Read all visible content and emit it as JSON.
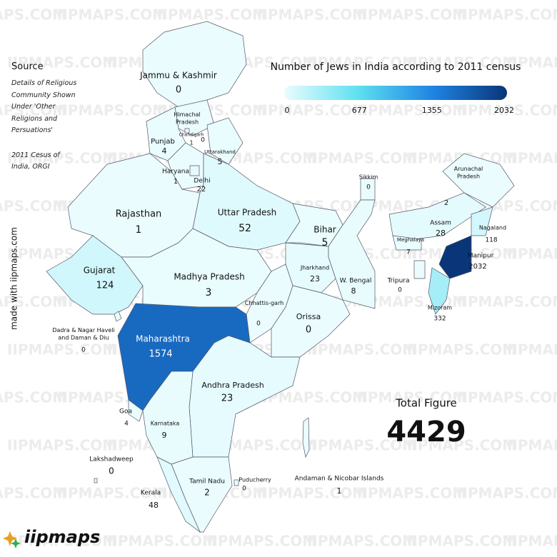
{
  "title": "Number of Jews in India according to 2011 census",
  "legend": {
    "ticks": [
      0,
      677,
      1355,
      2032
    ],
    "colors": [
      "#eafcfe",
      "#5ee0f0",
      "#1f84e4",
      "#0a3578"
    ]
  },
  "source": {
    "heading": "Source",
    "lines": [
      "Details of Religious Community Shown Under 'Other Religions and Persuations'",
      "2011 Cesus of India, ORGI"
    ]
  },
  "credit": "made with iipmaps.com",
  "total": {
    "label": "Total Figure",
    "value": 4429
  },
  "brand": "iipmaps",
  "watermark": "IIPMAPS.COM",
  "regions": [
    {
      "name": "Jammu & Kashmir",
      "value": 0
    },
    {
      "name": "Himachal Pradesh",
      "value": 0
    },
    {
      "name": "Chandigarh",
      "value": 1
    },
    {
      "name": "Punjab",
      "value": 4
    },
    {
      "name": "Uttarakhand",
      "value": 5
    },
    {
      "name": "Haryana",
      "value": 1
    },
    {
      "name": "Delhi",
      "value": 22
    },
    {
      "name": "Rajasthan",
      "value": 1
    },
    {
      "name": "Uttar Pradesh",
      "value": 52
    },
    {
      "name": "Sikkim",
      "value": 0
    },
    {
      "name": "Arunachal Pradesh",
      "value": 2
    },
    {
      "name": "Assam",
      "value": 28
    },
    {
      "name": "Nagaland",
      "value": 118
    },
    {
      "name": "Meghalaya",
      "value": 7
    },
    {
      "name": "Bihar",
      "value": 5
    },
    {
      "name": "Manipur",
      "value": 2032
    },
    {
      "name": "Gujarat",
      "value": 124
    },
    {
      "name": "Madhya Pradesh",
      "value": 3
    },
    {
      "name": "Jharkhand",
      "value": 23
    },
    {
      "name": "W. Bengal",
      "value": 8
    },
    {
      "name": "Tripura",
      "value": 0
    },
    {
      "name": "Mizoram",
      "value": 332
    },
    {
      "name": "Chhattis-garh",
      "value": 0
    },
    {
      "name": "Orissa",
      "value": 0
    },
    {
      "name": "Dadra & Nagar Haveli and Daman & Diu",
      "value": 0
    },
    {
      "name": "Maharashtra",
      "value": 1574
    },
    {
      "name": "Andhra Pradesh",
      "value": 23
    },
    {
      "name": "Goa",
      "value": 4
    },
    {
      "name": "Karnataka",
      "value": 9
    },
    {
      "name": "Lakshadweep",
      "value": 0
    },
    {
      "name": "Tamil Nadu",
      "value": 2
    },
    {
      "name": "Puducherry",
      "value": 0
    },
    {
      "name": "Kerala",
      "value": 48
    },
    {
      "name": "Andaman & Nicobar Islands",
      "value": 1
    }
  ]
}
